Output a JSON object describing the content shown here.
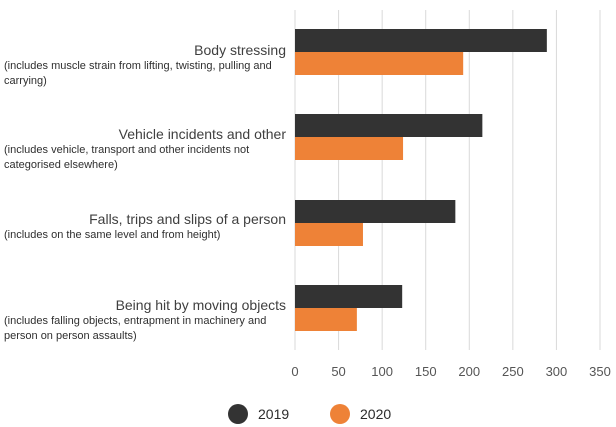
{
  "chart_data": {
    "type": "bar",
    "orientation": "horizontal",
    "categories": [
      {
        "name": "Body stressing",
        "note": "(includes muscle strain from lifting, twisting, pulling and carrying)"
      },
      {
        "name": "Vehicle incidents and other",
        "note": "(includes vehicle, transport and other incidents not categorised elsewhere)"
      },
      {
        "name": "Falls, trips and slips of a person",
        "note": "(includes on the same level and from height)"
      },
      {
        "name": "Being hit by moving objects",
        "note": "(includes falling objects, entrapment in machinery and person on person assaults)"
      }
    ],
    "series": [
      {
        "name": "2019",
        "color": "#333333",
        "values": [
          289,
          215,
          184,
          123
        ]
      },
      {
        "name": "2020",
        "color": "#ee8237",
        "values": [
          193,
          124,
          78,
          71
        ]
      }
    ],
    "xlim": [
      0,
      350
    ],
    "xticks": [
      "0",
      "50",
      "100",
      "150",
      "200",
      "250",
      "300",
      "350"
    ],
    "grid": true,
    "legend_position": "bottom"
  }
}
